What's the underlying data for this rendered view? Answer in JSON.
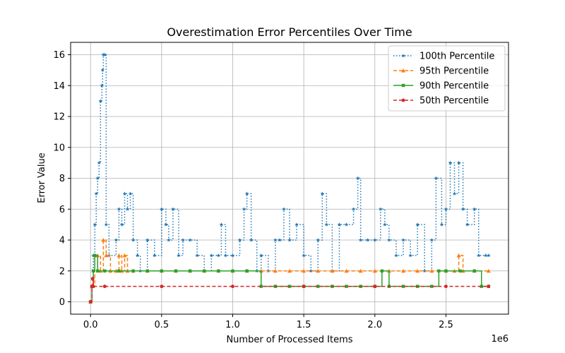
{
  "chart_data": {
    "type": "line",
    "title": "Overestimation Error Percentiles Over Time",
    "xlabel": "Number of Processed Items",
    "ylabel": "Error Value",
    "x_offset_label": "1e6",
    "xlim": [
      -0.14,
      2.94
    ],
    "ylim": [
      -0.8,
      16.8
    ],
    "x_ticks": [
      0.0,
      0.5,
      1.0,
      1.5,
      2.0,
      2.5
    ],
    "x_tick_labels": [
      "0.0",
      "0.5",
      "1.0",
      "1.5",
      "2.0",
      "2.5"
    ],
    "y_ticks": [
      0,
      2,
      4,
      6,
      8,
      10,
      12,
      14,
      16
    ],
    "y_tick_labels": [
      "0",
      "2",
      "4",
      "6",
      "8",
      "10",
      "12",
      "14",
      "16"
    ],
    "grid": true,
    "legend_position": "top-right",
    "series": [
      {
        "name": "100th Percentile",
        "color": "#1f77b4",
        "linestyle": "dotted",
        "marker": "star",
        "points": [
          [
            0,
            0
          ],
          [
            0.01,
            1
          ],
          [
            0.02,
            3
          ],
          [
            0.03,
            5
          ],
          [
            0.04,
            7
          ],
          [
            0.05,
            8
          ],
          [
            0.06,
            9
          ],
          [
            0.07,
            13
          ],
          [
            0.08,
            14
          ],
          [
            0.085,
            15
          ],
          [
            0.09,
            16
          ],
          [
            0.1,
            16
          ],
          [
            0.11,
            5
          ],
          [
            0.13,
            3
          ],
          [
            0.18,
            4
          ],
          [
            0.2,
            6
          ],
          [
            0.22,
            5
          ],
          [
            0.24,
            7
          ],
          [
            0.26,
            6
          ],
          [
            0.28,
            7
          ],
          [
            0.3,
            4
          ],
          [
            0.33,
            3
          ],
          [
            0.35,
            2
          ],
          [
            0.4,
            4
          ],
          [
            0.45,
            3
          ],
          [
            0.5,
            6
          ],
          [
            0.53,
            5
          ],
          [
            0.55,
            4
          ],
          [
            0.58,
            6
          ],
          [
            0.62,
            3
          ],
          [
            0.65,
            4
          ],
          [
            0.7,
            4
          ],
          [
            0.75,
            3
          ],
          [
            0.8,
            2
          ],
          [
            0.85,
            3
          ],
          [
            0.9,
            3
          ],
          [
            0.92,
            5
          ],
          [
            0.95,
            3
          ],
          [
            1.0,
            3
          ],
          [
            1.05,
            4
          ],
          [
            1.08,
            6
          ],
          [
            1.1,
            7
          ],
          [
            1.13,
            4
          ],
          [
            1.17,
            2
          ],
          [
            1.2,
            3
          ],
          [
            1.25,
            2
          ],
          [
            1.3,
            4
          ],
          [
            1.33,
            4
          ],
          [
            1.36,
            6
          ],
          [
            1.4,
            4
          ],
          [
            1.45,
            5
          ],
          [
            1.5,
            3
          ],
          [
            1.55,
            2
          ],
          [
            1.6,
            4
          ],
          [
            1.63,
            7
          ],
          [
            1.66,
            5
          ],
          [
            1.7,
            2
          ],
          [
            1.75,
            5
          ],
          [
            1.8,
            5
          ],
          [
            1.85,
            6
          ],
          [
            1.88,
            8
          ],
          [
            1.9,
            4
          ],
          [
            1.95,
            4
          ],
          [
            2.0,
            4
          ],
          [
            2.04,
            6
          ],
          [
            2.07,
            5
          ],
          [
            2.1,
            4
          ],
          [
            2.15,
            3
          ],
          [
            2.2,
            4
          ],
          [
            2.25,
            3
          ],
          [
            2.3,
            5
          ],
          [
            2.35,
            2
          ],
          [
            2.4,
            4
          ],
          [
            2.43,
            8
          ],
          [
            2.47,
            5
          ],
          [
            2.5,
            6
          ],
          [
            2.53,
            9
          ],
          [
            2.56,
            7
          ],
          [
            2.59,
            9
          ],
          [
            2.62,
            6
          ],
          [
            2.65,
            5
          ],
          [
            2.7,
            6
          ],
          [
            2.73,
            3
          ],
          [
            2.78,
            3
          ],
          [
            2.8,
            3
          ]
        ]
      },
      {
        "name": "95th Percentile",
        "color": "#ff7f0e",
        "linestyle": "dashed",
        "marker": "triangle",
        "points": [
          [
            0,
            0
          ],
          [
            0.01,
            1
          ],
          [
            0.03,
            3
          ],
          [
            0.05,
            3
          ],
          [
            0.07,
            2
          ],
          [
            0.09,
            4
          ],
          [
            0.11,
            3
          ],
          [
            0.14,
            2
          ],
          [
            0.18,
            2
          ],
          [
            0.2,
            3
          ],
          [
            0.22,
            2
          ],
          [
            0.24,
            3
          ],
          [
            0.26,
            2
          ],
          [
            0.3,
            2
          ],
          [
            0.4,
            2
          ],
          [
            0.5,
            2
          ],
          [
            0.6,
            2
          ],
          [
            0.7,
            2
          ],
          [
            0.8,
            2
          ],
          [
            0.9,
            2
          ],
          [
            1.0,
            2
          ],
          [
            1.1,
            2
          ],
          [
            1.2,
            2
          ],
          [
            1.3,
            2
          ],
          [
            1.4,
            2
          ],
          [
            1.5,
            2
          ],
          [
            1.6,
            2
          ],
          [
            1.7,
            2
          ],
          [
            1.8,
            2
          ],
          [
            1.9,
            2
          ],
          [
            2.0,
            2
          ],
          [
            2.1,
            2
          ],
          [
            2.2,
            2
          ],
          [
            2.3,
            2
          ],
          [
            2.4,
            2
          ],
          [
            2.5,
            2
          ],
          [
            2.56,
            2
          ],
          [
            2.59,
            3
          ],
          [
            2.62,
            2
          ],
          [
            2.7,
            2
          ],
          [
            2.8,
            2
          ]
        ]
      },
      {
        "name": "90th Percentile",
        "color": "#2ca02c",
        "linestyle": "solid",
        "marker": "square",
        "points": [
          [
            0,
            0
          ],
          [
            0.01,
            1
          ],
          [
            0.02,
            2
          ],
          [
            0.03,
            3
          ],
          [
            0.05,
            2
          ],
          [
            0.1,
            2
          ],
          [
            0.2,
            2
          ],
          [
            0.3,
            2
          ],
          [
            0.4,
            2
          ],
          [
            0.5,
            2
          ],
          [
            0.6,
            2
          ],
          [
            0.7,
            2
          ],
          [
            0.8,
            2
          ],
          [
            0.9,
            2
          ],
          [
            1.0,
            2
          ],
          [
            1.1,
            2
          ],
          [
            1.2,
            1
          ],
          [
            1.3,
            1
          ],
          [
            1.4,
            1
          ],
          [
            1.5,
            1
          ],
          [
            1.6,
            1
          ],
          [
            1.7,
            1
          ],
          [
            1.8,
            1
          ],
          [
            1.9,
            1
          ],
          [
            2.0,
            1
          ],
          [
            2.05,
            2
          ],
          [
            2.1,
            1
          ],
          [
            2.2,
            1
          ],
          [
            2.3,
            1
          ],
          [
            2.4,
            1
          ],
          [
            2.45,
            2
          ],
          [
            2.5,
            2
          ],
          [
            2.6,
            2
          ],
          [
            2.7,
            2
          ],
          [
            2.75,
            1
          ],
          [
            2.8,
            1
          ]
        ]
      },
      {
        "name": "50th Percentile",
        "color": "#d62728",
        "linestyle": "dashed",
        "marker": "pentagon",
        "points": [
          [
            0,
            0
          ],
          [
            0.01,
            1
          ],
          [
            0.015,
            1.5
          ],
          [
            0.02,
            1
          ],
          [
            0.1,
            1
          ],
          [
            0.5,
            1
          ],
          [
            1.0,
            1
          ],
          [
            1.5,
            1
          ],
          [
            2.0,
            1
          ],
          [
            2.5,
            1
          ],
          [
            2.8,
            1
          ]
        ]
      }
    ]
  }
}
